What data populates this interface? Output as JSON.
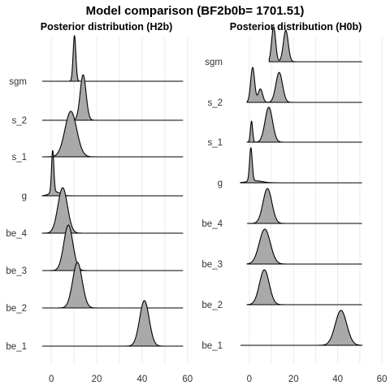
{
  "title": "Model comparison (BF2b0b= 1701.51)",
  "chart_data": [
    {
      "type": "ridgeline",
      "title": "Posterior distribution (H2b)",
      "xlabel": "",
      "ylabel": "",
      "xlim": [
        -4,
        59
      ],
      "x_ticks": [
        0,
        20,
        40,
        60
      ],
      "categories": [
        "sgm",
        "s_2",
        "s_1",
        "g",
        "be_4",
        "be_3",
        "be_2",
        "be_1"
      ],
      "series": [
        {
          "name": "sgm",
          "components": [
            {
              "mean": 10.2,
              "sd": 0.6,
              "weight": 1
            }
          ],
          "range": [
            -4,
            58
          ]
        },
        {
          "name": "s_2",
          "components": [
            {
              "mean": 14.0,
              "sd": 1.3,
              "weight": 1
            }
          ],
          "range": [
            -4,
            58
          ]
        },
        {
          "name": "s_1",
          "components": [
            {
              "mean": 8.6,
              "sd": 2.6,
              "weight": 1
            }
          ],
          "range": [
            -4,
            58
          ]
        },
        {
          "name": "g",
          "components": [
            {
              "mean": 0.6,
              "sd": 0.5,
              "weight": 0.7
            },
            {
              "mean": 1.6,
              "sd": 2.2,
              "weight": 0.3
            }
          ],
          "range": [
            -4,
            58
          ]
        },
        {
          "name": "be_4",
          "components": [
            {
              "mean": 5.0,
              "sd": 2.1,
              "weight": 1
            }
          ],
          "range": [
            -4,
            58
          ]
        },
        {
          "name": "be_3",
          "components": [
            {
              "mean": 7.5,
              "sd": 2.0,
              "weight": 1
            }
          ],
          "range": [
            -4,
            58
          ]
        },
        {
          "name": "be_2",
          "components": [
            {
              "mean": 11.5,
              "sd": 2.1,
              "weight": 1
            }
          ],
          "range": [
            -4,
            58
          ]
        },
        {
          "name": "be_1",
          "components": [
            {
              "mean": 41.0,
              "sd": 2.1,
              "weight": 1
            }
          ],
          "range": [
            -4,
            58
          ]
        }
      ]
    },
    {
      "type": "ridgeline",
      "title": "Posterior distribution (H0b)",
      "xlabel": "",
      "ylabel": "",
      "xlim": [
        -4,
        60
      ],
      "x_ticks": [
        0,
        20,
        40,
        60
      ],
      "categories": [
        "sgm",
        "s_2",
        "s_1",
        "g",
        "be_4",
        "be_3",
        "be_2",
        "be_1"
      ],
      "series": [
        {
          "name": "sgm",
          "components": [
            {
              "mean": 11.0,
              "sd": 0.9,
              "weight": 0.5
            },
            {
              "mean": 16.5,
              "sd": 1.1,
              "weight": 0.55
            }
          ],
          "range": [
            9,
            51
          ]
        },
        {
          "name": "s_2",
          "components": [
            {
              "mean": 1.5,
              "sd": 0.9,
              "weight": 0.35
            },
            {
              "mean": 5.0,
              "sd": 1.0,
              "weight": 0.15
            },
            {
              "mean": 13.5,
              "sd": 1.5,
              "weight": 0.5
            }
          ],
          "range": [
            -1,
            51
          ]
        },
        {
          "name": "s_1",
          "components": [
            {
              "mean": 1.0,
              "sd": 0.5,
              "weight": 0.15
            },
            {
              "mean": 8.8,
              "sd": 1.7,
              "weight": 0.85
            }
          ],
          "range": [
            -1,
            51
          ]
        },
        {
          "name": "g",
          "components": [
            {
              "mean": 0.7,
              "sd": 0.6,
              "weight": 0.75
            },
            {
              "mean": 2.5,
              "sd": 3.2,
              "weight": 0.25
            }
          ],
          "range": [
            -4,
            51
          ]
        },
        {
          "name": "be_4",
          "components": [
            {
              "mean": 8.2,
              "sd": 2.0,
              "weight": 1
            }
          ],
          "range": [
            -1,
            51
          ]
        },
        {
          "name": "be_3",
          "components": [
            {
              "mean": 7.0,
              "sd": 2.5,
              "weight": 1
            }
          ],
          "range": [
            -1,
            51
          ]
        },
        {
          "name": "be_2",
          "components": [
            {
              "mean": 6.8,
              "sd": 2.2,
              "weight": 1
            }
          ],
          "range": [
            -1,
            51
          ]
        },
        {
          "name": "be_1",
          "components": [
            {
              "mean": 41.5,
              "sd": 2.6,
              "weight": 1
            }
          ],
          "range": [
            -4,
            51
          ]
        }
      ]
    }
  ]
}
